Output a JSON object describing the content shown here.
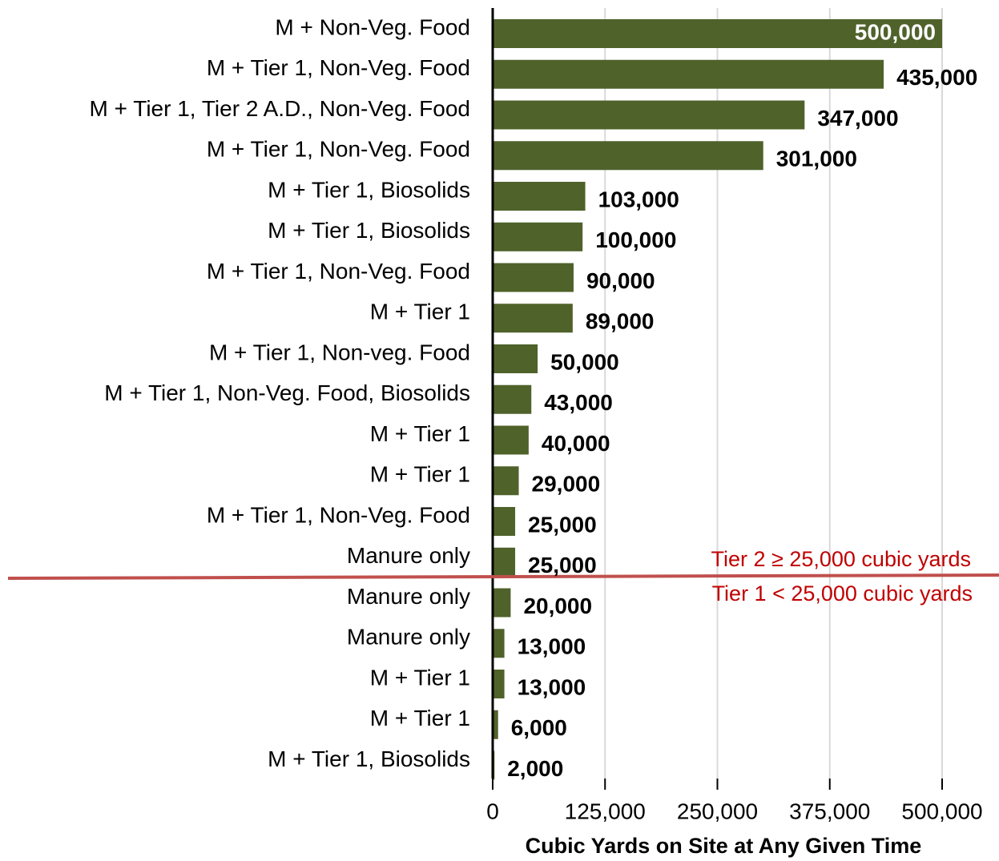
{
  "chart_data": {
    "type": "barh",
    "categories": [
      "M + Non-Veg. Food",
      "M + Tier 1, Non-Veg. Food",
      "M + Tier 1, Tier 2 A.D., Non-Veg. Food",
      "M + Tier 1, Non-Veg. Food",
      "M + Tier 1, Biosolids",
      "M + Tier 1, Biosolids",
      "M + Tier 1, Non-Veg. Food",
      "M + Tier 1",
      "M + Tier 1, Non-veg. Food",
      "M + Tier 1, Non-Veg. Food, Biosolids",
      "M + Tier 1",
      "M + Tier 1",
      "M + Tier 1, Non-Veg. Food",
      "Manure only",
      "Manure only",
      "Manure only",
      "M + Tier 1",
      "M + Tier 1",
      "M + Tier 1, Biosolids"
    ],
    "values": [
      500000,
      435000,
      347000,
      301000,
      103000,
      100000,
      90000,
      89000,
      50000,
      43000,
      40000,
      29000,
      25000,
      25000,
      20000,
      13000,
      13000,
      6000,
      2000
    ],
    "value_labels": [
      "500,000",
      "435,000",
      "347,000",
      "301,000",
      "103,000",
      "100,000",
      "90,000",
      "89,000",
      "50,000",
      "43,000",
      "40,000",
      "29,000",
      "25,000",
      "25,000",
      "20,000",
      "13,000",
      "13,000",
      "6,000",
      "2,000"
    ],
    "color": "#4f622a",
    "xlim": [
      0,
      500000
    ],
    "xticks": [
      0,
      {
        "value": 125000,
        "label": "125,000"
      },
      {
        "value": 250000,
        "label": "250,000"
      },
      {
        "value": 375000,
        "label": "375,000"
      },
      {
        "value": 500000,
        "label": "500,000"
      }
    ],
    "grid": true,
    "xlabel": "Cubic Yards on Site at Any Given Time",
    "annotations": [
      "Tier 2 ≥ 25,000 cubic yards",
      "Tier 1 < 25,000 cubic yards"
    ]
  }
}
